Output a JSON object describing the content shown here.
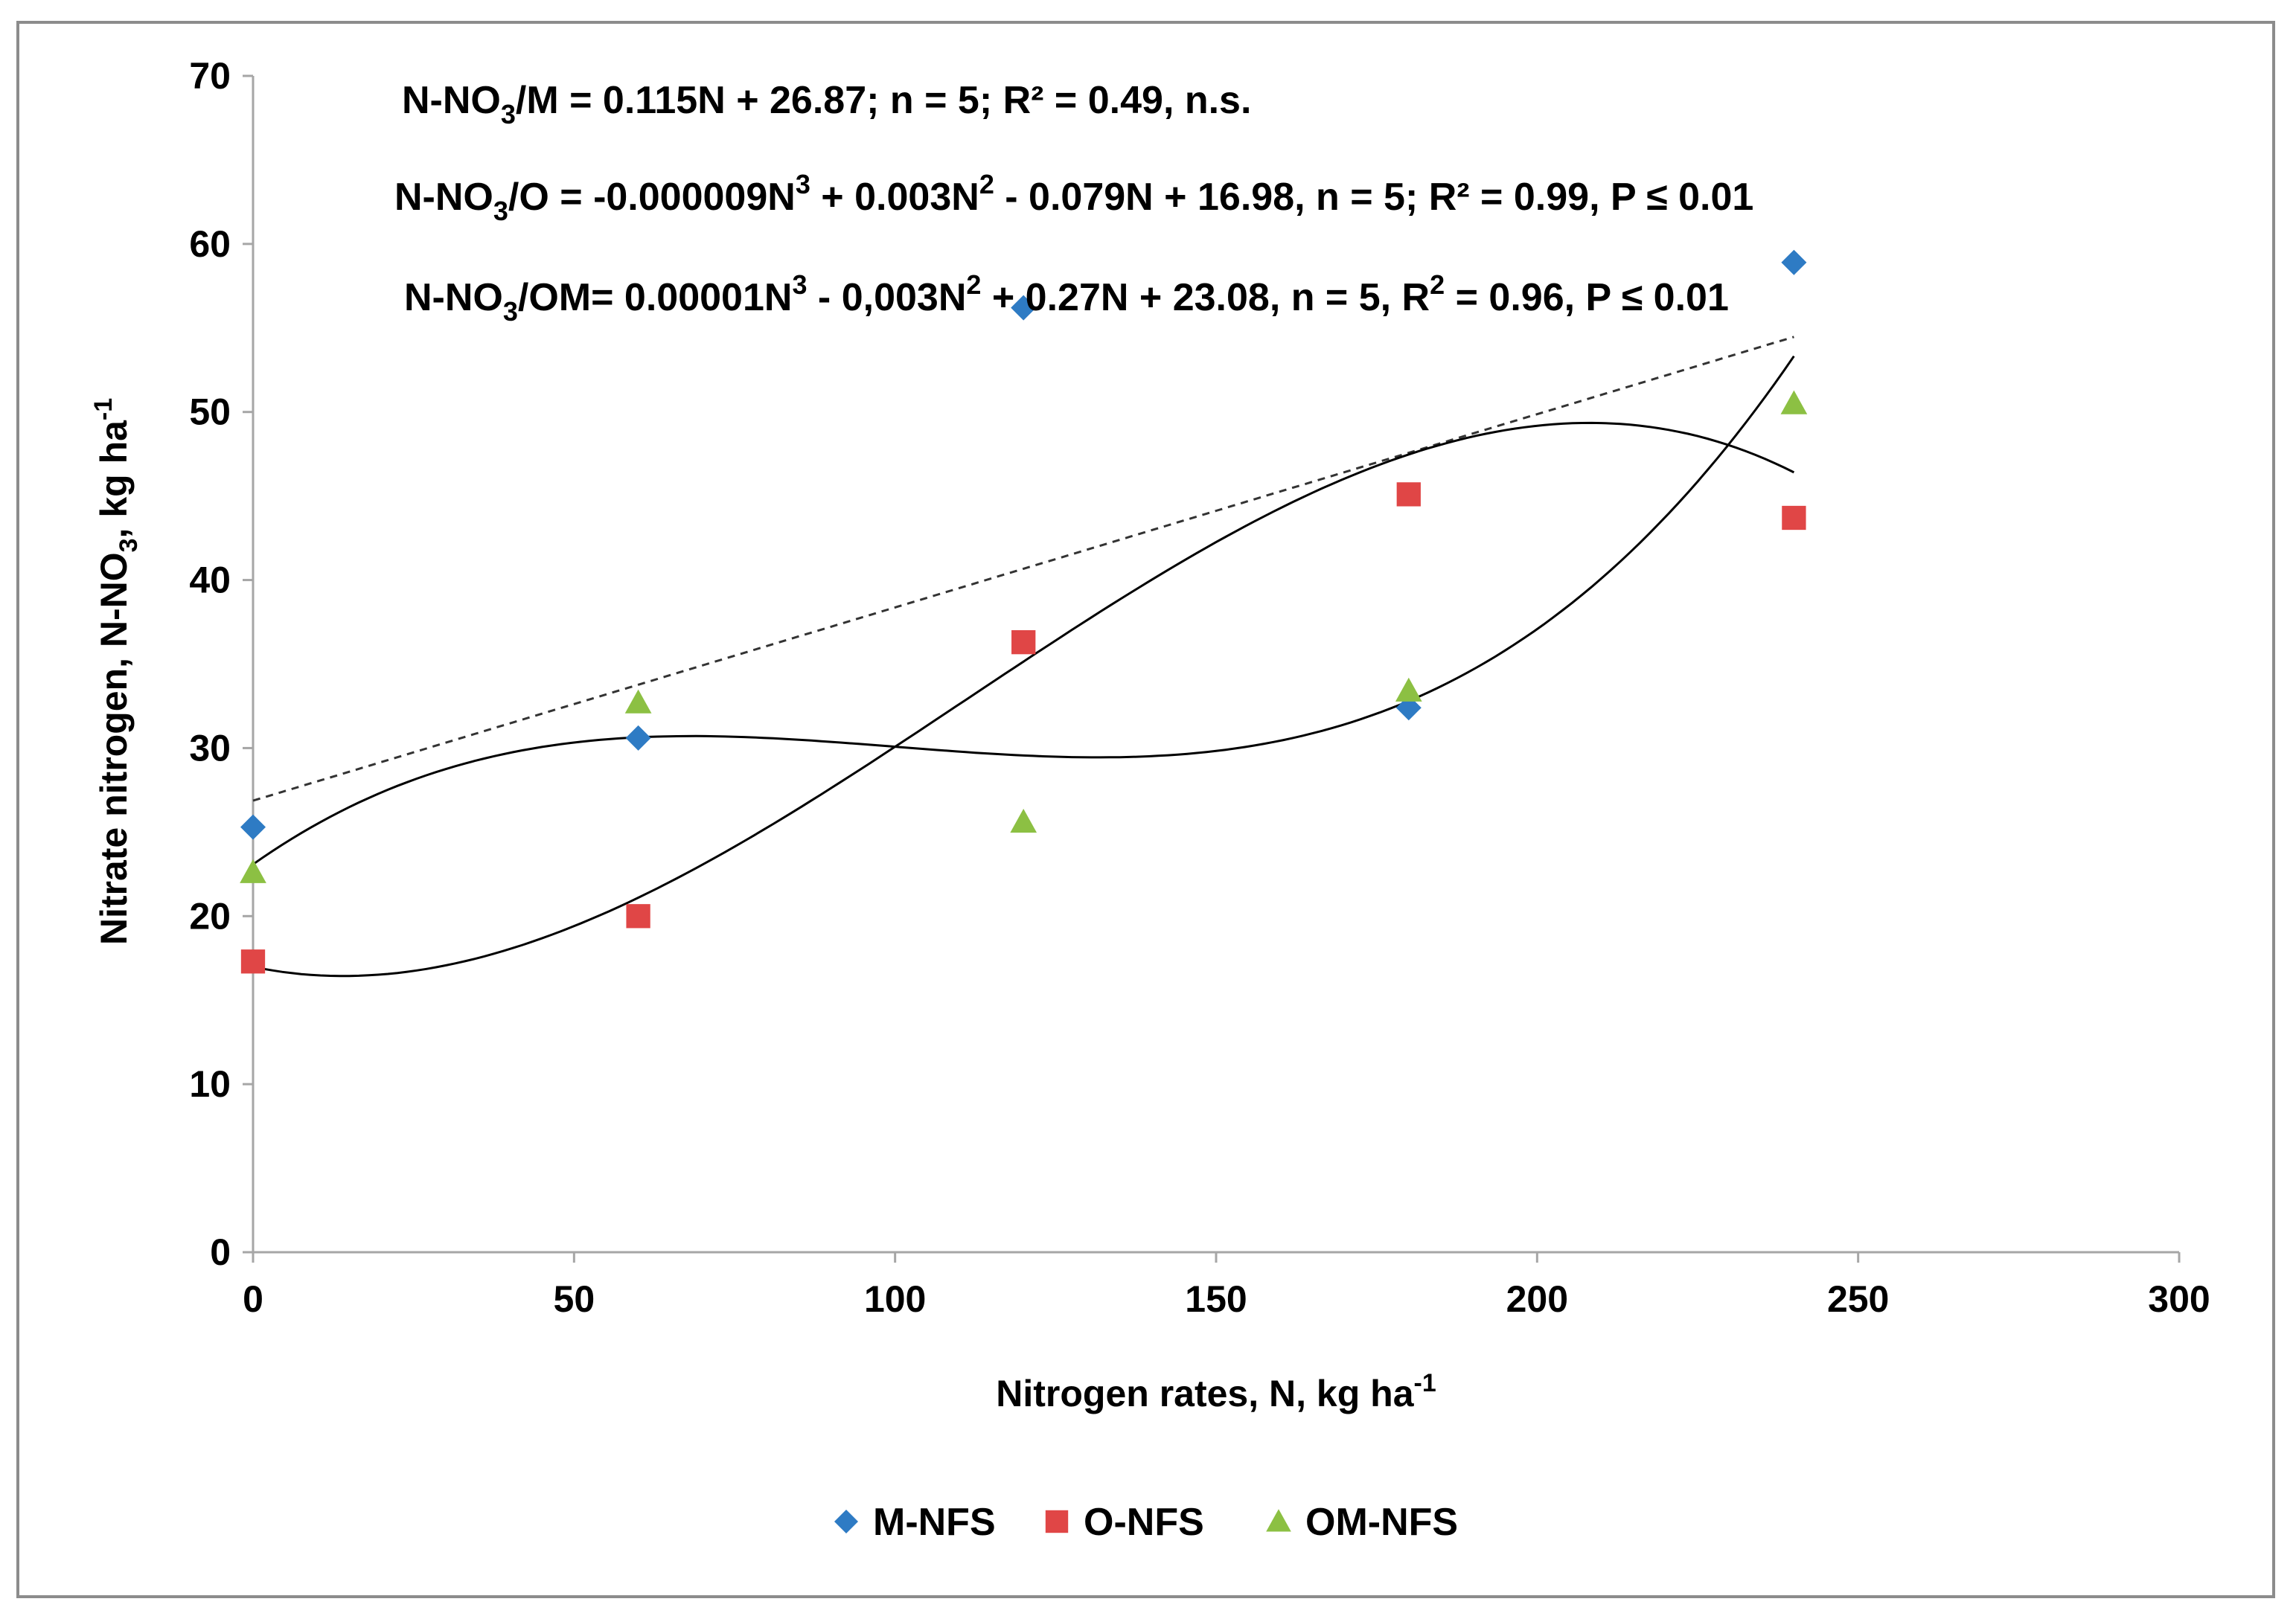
{
  "chart_data": {
    "type": "scatter",
    "title": "",
    "xlabel": "Nitrogen rates, N, kg ha",
    "xlabel_sup": "-1",
    "ylabel": "Nitrate nitrogen, N-NO",
    "ylabel_sub": "3",
    "ylabel_tail": ", kg ha",
    "ylabel_sup": "-1",
    "xlim": [
      0,
      300
    ],
    "ylim": [
      0,
      70
    ],
    "xticks": [
      0,
      50,
      100,
      150,
      200,
      250,
      300
    ],
    "yticks": [
      0,
      10,
      20,
      30,
      40,
      50,
      60,
      70
    ],
    "x": [
      0,
      60,
      120,
      180,
      240
    ],
    "series": [
      {
        "name": "M-NFS",
        "marker": "diamond",
        "color": "#2e7bc4",
        "values": [
          25.3,
          30.6,
          56.2,
          32.4,
          58.9
        ]
      },
      {
        "name": "O-NFS",
        "marker": "square",
        "color": "#e04646",
        "values": [
          17.3,
          20.0,
          36.3,
          45.1,
          43.7
        ]
      },
      {
        "name": "OM-NFS",
        "marker": "triangle",
        "color": "#8cc043",
        "values": [
          22.6,
          32.7,
          25.6,
          33.4,
          50.5
        ]
      }
    ],
    "trendlines": [
      {
        "series": "M-NFS",
        "kind": "linear",
        "style": "dashed",
        "coef": [
          26.87,
          0.115
        ]
      },
      {
        "series": "O-NFS",
        "kind": "cubic",
        "style": "solid",
        "coef": [
          16.98,
          -0.079,
          0.003,
          -9e-06
        ]
      },
      {
        "series": "OM-NFS",
        "kind": "cubic",
        "style": "solid",
        "coef": [
          23.08,
          0.27,
          -0.003,
          1e-05
        ]
      }
    ],
    "equations": [
      [
        {
          "t": "N-NO"
        },
        {
          "t": "3",
          "s": "sub"
        },
        {
          "t": "/M = 0.115N + 26.87; n = 5; R² = 0.49, n.s."
        }
      ],
      [
        {
          "t": "N-NO"
        },
        {
          "t": "3",
          "s": "sub"
        },
        {
          "t": "/O = -0.000009N"
        },
        {
          "t": "3",
          "s": "sup"
        },
        {
          "t": " + 0.003N"
        },
        {
          "t": "2",
          "s": "sup"
        },
        {
          "t": " - 0.079N + 16.98, n = 5; R² = 0.99, P ≤ 0.01"
        }
      ],
      [
        {
          "t": "N-NO"
        },
        {
          "t": "3",
          "s": "sub"
        },
        {
          "t": "/OM= 0.00001N"
        },
        {
          "t": "3",
          "s": "sup"
        },
        {
          "t": " - 0,003N"
        },
        {
          "t": "2",
          "s": "sup"
        },
        {
          "t": " + 0.27N + 23.08, n = 5, R"
        },
        {
          "t": "2",
          "s": "sup"
        },
        {
          "t": " = 0.96, P ≤ 0.01"
        }
      ]
    ],
    "legend_position": "bottom"
  }
}
